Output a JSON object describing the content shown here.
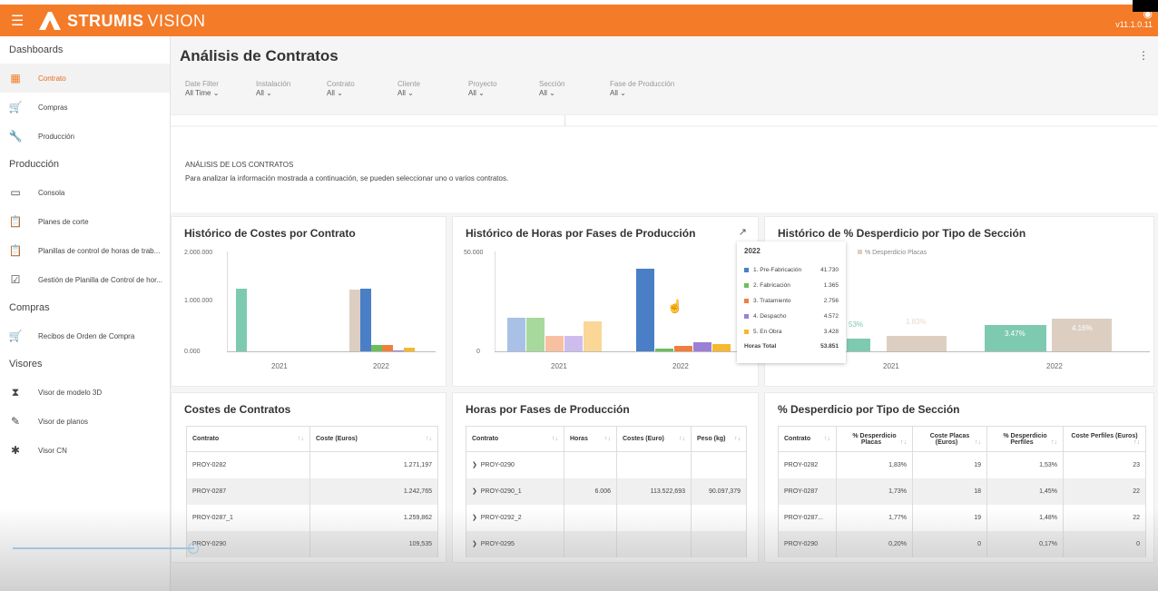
{
  "app": {
    "brand": "STRUMIS",
    "brand_suffix": "VISION",
    "version": "v11.1.0.11",
    "menu_icon": "hamburger-icon",
    "user_icon": "user-icon"
  },
  "sidebar": {
    "sections": [
      {
        "label": "Dashboards",
        "items": [
          {
            "label": "Contrato",
            "icon": "chart-icon",
            "active": true
          },
          {
            "label": "Compras",
            "icon": "cart-icon"
          },
          {
            "label": "Producción",
            "icon": "wrench-icon"
          }
        ]
      },
      {
        "label": "Producción",
        "items": [
          {
            "label": "Consola",
            "icon": "monitor-icon"
          },
          {
            "label": "Planes de corte",
            "icon": "clipboard-icon"
          },
          {
            "label": "Planillas de control de horas de trab...",
            "icon": "clipboard-user-icon"
          },
          {
            "label": "Gestión de Planilla de Control de hor...",
            "icon": "clipboard-check-icon"
          }
        ]
      },
      {
        "label": "Compras",
        "items": [
          {
            "label": "Recibos de Orden de Compra",
            "icon": "cart-receipt-icon"
          }
        ]
      },
      {
        "label": "Visores",
        "items": [
          {
            "label": "Visor de modelo 3D",
            "icon": "3d-icon"
          },
          {
            "label": "Visor de planos",
            "icon": "pen-icon"
          },
          {
            "label": "Visor CN",
            "icon": "puzzle-icon"
          }
        ]
      }
    ]
  },
  "page": {
    "title": "Análisis de Contratos",
    "filters": [
      {
        "label": "Date Filter",
        "value": "All Time"
      },
      {
        "label": "Instalación",
        "value": "All"
      },
      {
        "label": "Contrato",
        "value": "All"
      },
      {
        "label": "Cliente",
        "value": "All"
      },
      {
        "label": "Proyecto",
        "value": "All"
      },
      {
        "label": "Sección",
        "value": "All"
      },
      {
        "label": "Fase de Producción",
        "value": "All"
      }
    ],
    "intro_heading": "ANÁLISIS DE LOS CONTRATOS",
    "intro_text": "Para analizar la información mostrada a continuación, se pueden seleccionar uno o varios contratos."
  },
  "chart1": {
    "title": "Histórico de Costes por Contrato",
    "yticks": [
      "2.000.000",
      "1.000.000",
      "0.000"
    ],
    "xticks": [
      "2021",
      "2022"
    ]
  },
  "chart2": {
    "title": "Histórico de Horas por Fases de Producción",
    "yticks": [
      "50.000",
      "0"
    ],
    "xticks": [
      "2021",
      "2022"
    ]
  },
  "chart3": {
    "title": "Histórico de % Desperdicio por Tipo de Sección",
    "legend": [
      "s",
      "% Desperdicio Placas"
    ],
    "labels": [
      "53%",
      "1.83%",
      "3.47%",
      "4.16%"
    ],
    "xticks": [
      "2021",
      "2022"
    ]
  },
  "tooltip": {
    "year": "2022",
    "rows": [
      {
        "label": "1. Pre-Fabricación",
        "value": "41.730",
        "color": "#4a7fc8"
      },
      {
        "label": "2. Fabricación",
        "value": "1.365",
        "color": "#6bbf59"
      },
      {
        "label": "3. Tratamiento",
        "value": "2.756",
        "color": "#f07f3c"
      },
      {
        "label": "4. Despacho",
        "value": "4.572",
        "color": "#9b7fd6"
      },
      {
        "label": "5. En Obra",
        "value": "3.428",
        "color": "#f5b82e"
      }
    ],
    "total_label": "Horas Total",
    "total_value": "53.851"
  },
  "table1": {
    "title": "Costes de Contratos",
    "headers": [
      "Contrato",
      "Coste (Euros)"
    ],
    "rows": [
      [
        "PROY-0282",
        "1.271,197"
      ],
      [
        "PROY-0287",
        "1.242,765"
      ],
      [
        "PROY-0287_1",
        "1.259,862"
      ],
      [
        "PROY-0290",
        "109,535"
      ]
    ]
  },
  "table2": {
    "title": "Horas por Fases de Producción",
    "headers": [
      "Contrato",
      "Horas",
      "Costes (Euro)",
      "Peso (kg)"
    ],
    "rows": [
      [
        "PROY-0290",
        "",
        "",
        ""
      ],
      [
        "PROY-0290_1",
        "6.006",
        "113.522,693",
        "90.097,379"
      ],
      [
        "PROY-0292_2",
        "",
        "",
        ""
      ],
      [
        "PROY-0295",
        "",
        "",
        ""
      ]
    ]
  },
  "table3": {
    "title": "% Desperdicio por Tipo de Sección",
    "headers": [
      "Contrato",
      "% Desperdicio Placas",
      "Coste Placas (Euros)",
      "% Desperdicio Perfiles",
      "Coste Perfiles (Euros)"
    ],
    "rows": [
      [
        "PROY-0282",
        "1,83%",
        "19",
        "1,53%",
        "23"
      ],
      [
        "PROY-0287",
        "1,73%",
        "18",
        "1,45%",
        "22"
      ],
      [
        "PROY-0287...",
        "1,77%",
        "19",
        "1,48%",
        "22"
      ],
      [
        "PROY-0290",
        "0,20%",
        "0",
        "0,17%",
        "0"
      ]
    ]
  },
  "colors": {
    "accent": "#f47b28",
    "teal": "#7ecab0",
    "beige": "#dccfc2",
    "blue": "#4a7fc8"
  }
}
